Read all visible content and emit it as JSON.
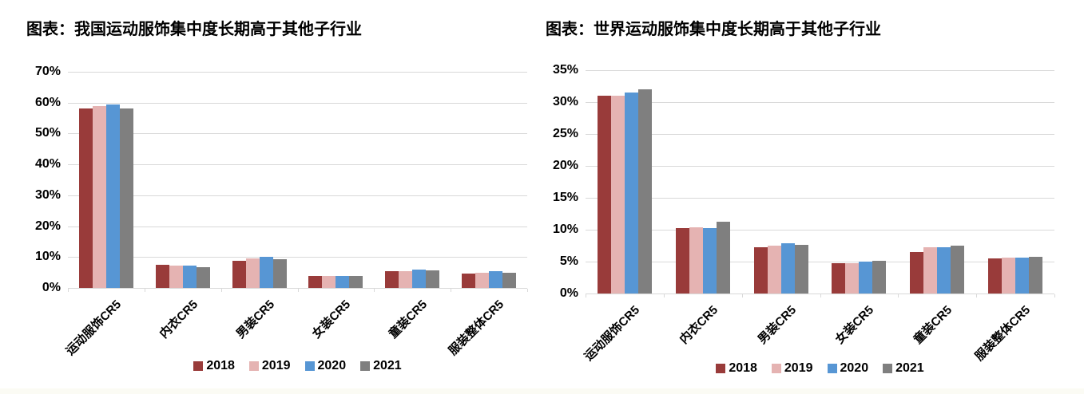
{
  "page": {
    "background": "#FFFFFF"
  },
  "colors": {
    "grid": "#D9D9D9",
    "axis_text": "#000000",
    "title_text": "#000000",
    "series_2018": "#993B3A",
    "series_2019": "#E5B3B2",
    "series_2020": "#5796D4",
    "series_2021": "#7F7F7F"
  },
  "chart_data": [
    {
      "type": "bar",
      "title": "图表：我国运动服饰集中度长期高于其他子行业",
      "categories": [
        "运动服饰CR5",
        "内衣CR5",
        "男装CR5",
        "女装CR5",
        "童装CR5",
        "服装整体CR5"
      ],
      "series": [
        {
          "name": "2018",
          "color": "#993B3A",
          "values": [
            58.0,
            7.4,
            8.8,
            3.8,
            5.3,
            4.7
          ]
        },
        {
          "name": "2019",
          "color": "#E5B3B2",
          "values": [
            58.9,
            7.2,
            9.5,
            3.8,
            5.5,
            5.0
          ]
        },
        {
          "name": "2020",
          "color": "#5796D4",
          "values": [
            59.3,
            7.3,
            10.2,
            4.0,
            5.9,
            5.3
          ]
        },
        {
          "name": "2021",
          "color": "#7F7F7F",
          "values": [
            58.2,
            6.7,
            9.2,
            3.9,
            5.7,
            4.9
          ]
        }
      ],
      "xlabel": "",
      "ylabel": "",
      "ylim": [
        0,
        70
      ],
      "ytick_step": 10,
      "ytick_suffix": "%",
      "grid": true,
      "legend_position": "bottom"
    },
    {
      "type": "bar",
      "title": "图表：世界运动服饰集中度长期高于其他子行业",
      "categories": [
        "运动服饰CR5",
        "内衣CR5",
        "男装CR5",
        "女装CR5",
        "童装CR5",
        "服装整体CR5"
      ],
      "series": [
        {
          "name": "2018",
          "color": "#993B3A",
          "values": [
            31.0,
            10.3,
            7.2,
            4.8,
            6.5,
            5.5
          ]
        },
        {
          "name": "2019",
          "color": "#E5B3B2",
          "values": [
            31.0,
            10.4,
            7.5,
            4.7,
            7.2,
            5.6
          ]
        },
        {
          "name": "2020",
          "color": "#5796D4",
          "values": [
            31.5,
            10.2,
            7.9,
            5.0,
            7.2,
            5.6
          ]
        },
        {
          "name": "2021",
          "color": "#7F7F7F",
          "values": [
            32.0,
            11.2,
            7.6,
            5.1,
            7.5,
            5.8
          ]
        }
      ],
      "xlabel": "",
      "ylabel": "",
      "ylim": [
        0,
        35
      ],
      "ytick_step": 5,
      "ytick_suffix": "%",
      "grid": true,
      "legend_position": "bottom"
    }
  ]
}
